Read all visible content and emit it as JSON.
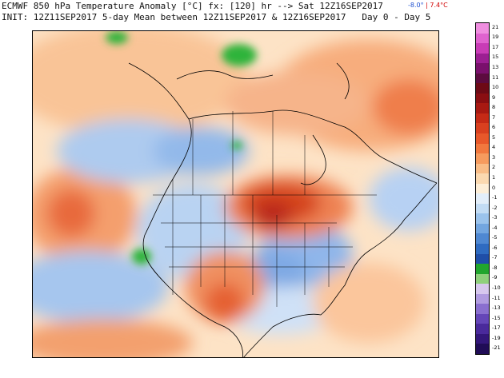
{
  "header": {
    "title": "ECMWF 850 hPa Temperature Anomaly [°C] fx: [120] hr --> Sat 12Z16SEP2017",
    "init": "INIT: 12Z11SEP2017 5-day Mean between 12Z11SEP2017 & 12Z16SEP2017   Day 0 - Day 5",
    "min_label": "-8.0°",
    "separator": "|",
    "max_label": "7.4°C"
  },
  "colorbar": {
    "labels": [
      "21",
      "19",
      "17",
      "15",
      "13",
      "11",
      "10",
      "9",
      "8",
      "7",
      "6",
      "5",
      "4",
      "3",
      "2",
      "1",
      "0",
      "-1",
      "-2",
      "-3",
      "-4",
      "-5",
      "-6",
      "-7",
      "-8",
      "-9",
      "-10",
      "-11",
      "-13",
      "-15",
      "-17",
      "-19",
      "-21"
    ],
    "colors": [
      "#f08ee0",
      "#e063cf",
      "#c93cb6",
      "#9c1f92",
      "#7a106c",
      "#5c0b3f",
      "#6d0a16",
      "#8a0e12",
      "#a81912",
      "#c52a16",
      "#d9401f",
      "#e8582a",
      "#f1783e",
      "#f69b5e",
      "#f9bd87",
      "#fbd9b0",
      "#fdeed7",
      "#e3eef9",
      "#c3dcf4",
      "#9bc3ec",
      "#73a6e0",
      "#4f88d2",
      "#2f6bc1",
      "#1f4ea8",
      "#21a62d",
      "#8fd07c",
      "#d7c8ee",
      "#b19ce0",
      "#8a6fcf",
      "#6546b8",
      "#4a2a9c",
      "#33177a",
      "#200c56"
    ]
  },
  "map": {
    "region": "North America",
    "colors": {
      "warm_light": "#fcd7b4",
      "warm_mid": "#f7a872",
      "warm_strong": "#e65a2c",
      "warm_core": "#c22c18",
      "cool_light": "#c9def5",
      "cool_mid": "#8db7e8",
      "cool_strong": "#4d83d1",
      "green": "#2fb43a",
      "neutral": "#fdeed7"
    }
  }
}
